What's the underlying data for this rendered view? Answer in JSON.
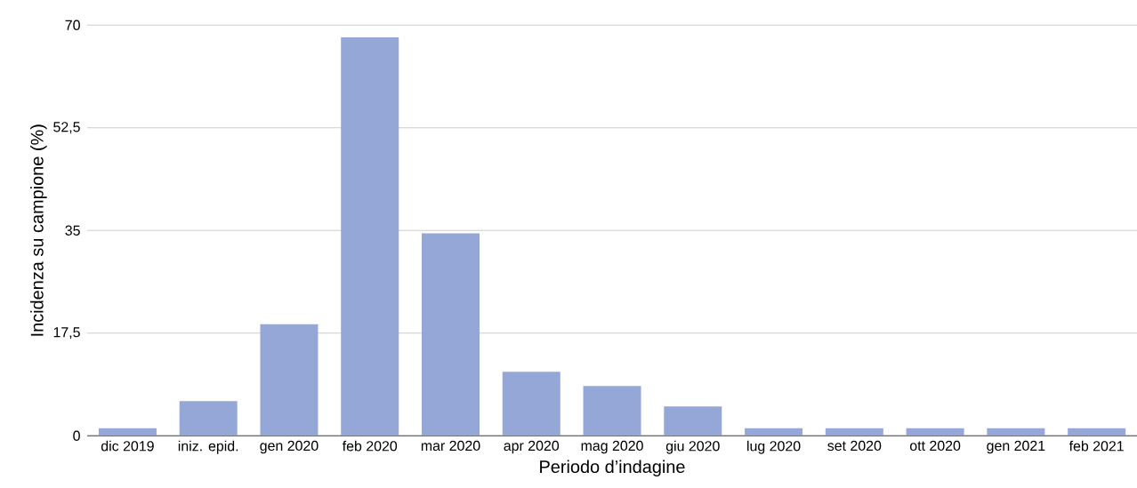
{
  "chart_data": {
    "type": "bar",
    "xlabel": "Periodo d’indagine",
    "ylabel": "Incidenza su campione (%)",
    "categories": [
      "dic 2019",
      "iniz. epid.",
      "gen 2020",
      "feb 2020",
      "mar 2020",
      "apr 2020",
      "mag 2020",
      "giu 2020",
      "lug 2020",
      "set 2020",
      "ott 2020",
      "gen 2021",
      "feb 2021"
    ],
    "values": [
      1.3,
      5.9,
      19.0,
      67.9,
      34.5,
      10.9,
      8.5,
      5.0,
      1.3,
      1.3,
      1.3,
      1.3,
      1.3
    ],
    "color": "#94a7d6",
    "ylim": [
      0,
      70
    ],
    "yticks": [
      0,
      {
        "value": 17.5,
        "label": "17,5"
      },
      35,
      {
        "value": 52.5,
        "label": "52,5"
      },
      70
    ],
    "grid": "y"
  }
}
